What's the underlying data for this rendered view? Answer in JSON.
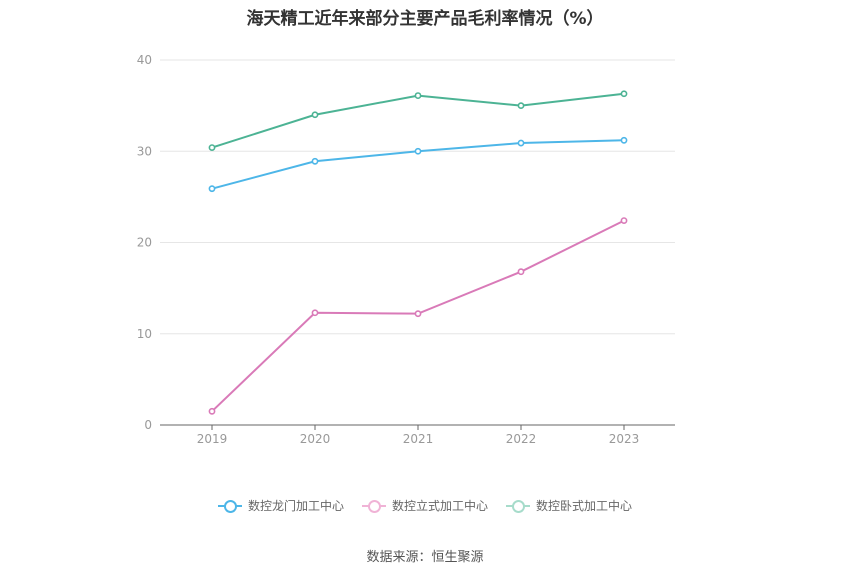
{
  "title": "海天精工近年来部分主要产品毛利率情况（%）",
  "source": "数据来源：恒生聚源",
  "colors": {
    "grid": "#e6e6e6",
    "axis": "#666666",
    "series": [
      "#4db6e8",
      "#d97ab8",
      "#4cb394"
    ]
  },
  "chart_data": {
    "type": "line",
    "title": "海天精工近年来部分主要产品毛利率情况（%）",
    "x": [
      "2019",
      "2020",
      "2021",
      "2022",
      "2023"
    ],
    "ylim": [
      0,
      40
    ],
    "yticks": [
      0,
      10,
      20,
      30,
      40
    ],
    "grid": true,
    "legend_position": "bottom",
    "series": [
      {
        "name": "数控龙门加工中心",
        "values": [
          25.9,
          28.9,
          30.0,
          30.9,
          31.2
        ]
      },
      {
        "name": "数控立式加工中心",
        "values": [
          1.5,
          12.3,
          12.2,
          16.8,
          22.4
        ]
      },
      {
        "name": "数控卧式加工中心",
        "values": [
          30.4,
          34.0,
          36.1,
          35.0,
          36.3
        ]
      }
    ]
  }
}
